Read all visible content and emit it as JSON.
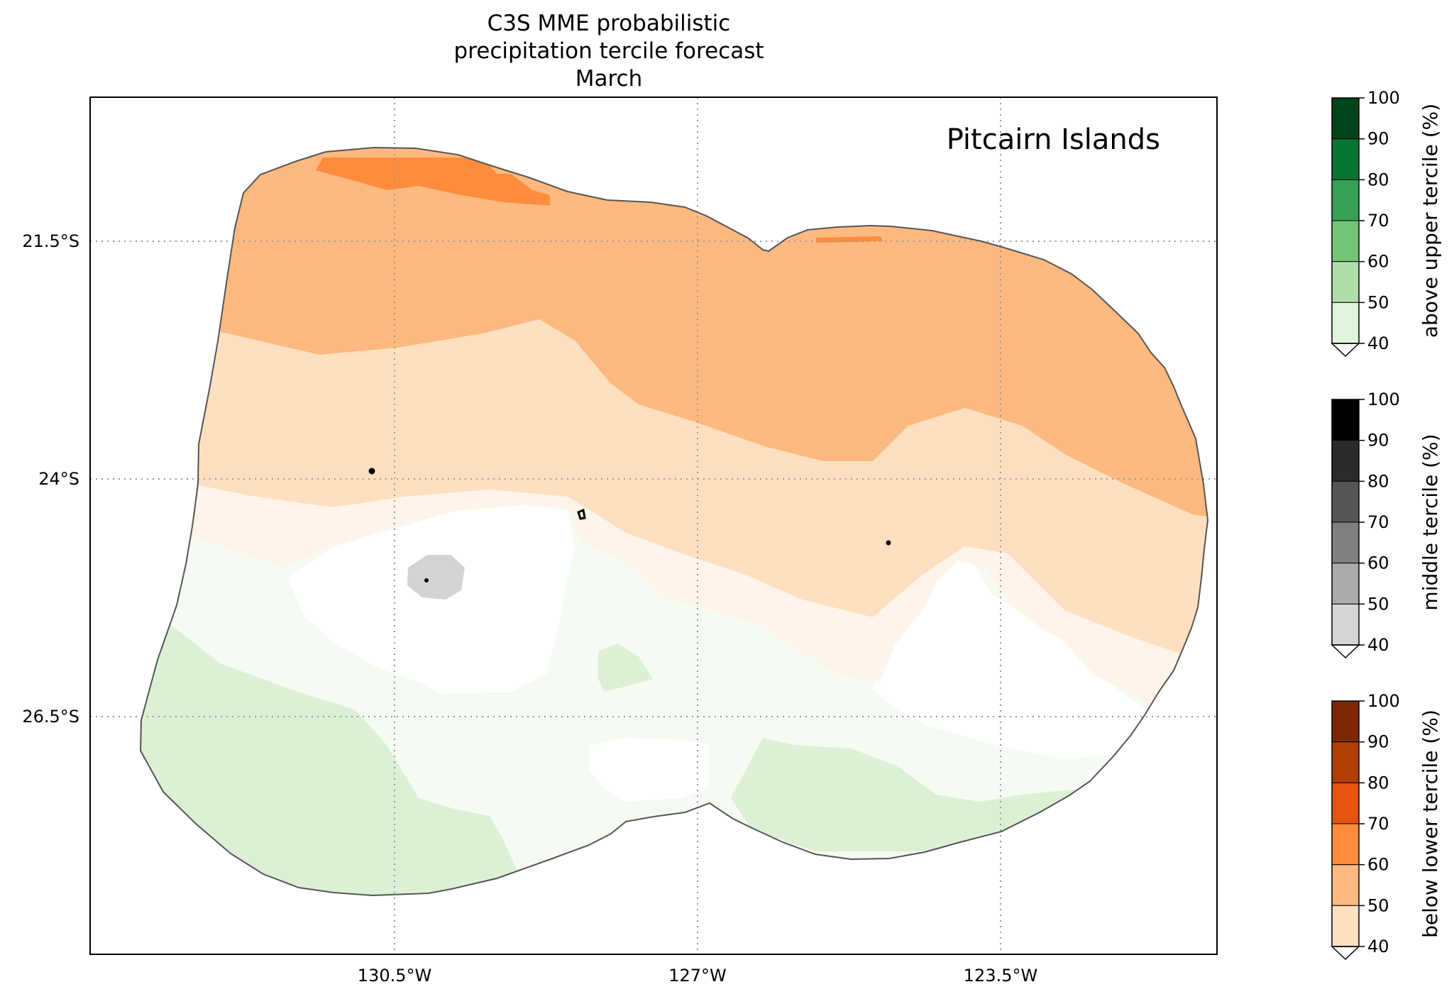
{
  "title": [
    "C3S MME probabilistic",
    "precipitation tercile forecast",
    "March"
  ],
  "region_label": "Pitcairn Islands",
  "map": {
    "lon_ticks": [
      "130.5°W",
      "127°W",
      "123.5°W"
    ],
    "lat_ticks": [
      "21.5°S",
      "24°S",
      "26.5°S"
    ]
  },
  "colorbars": [
    {
      "label": "above upper tercile (%)",
      "ticks": [
        "100",
        "90",
        "80",
        "70",
        "60",
        "50",
        "40"
      ],
      "colors": [
        "#00441b",
        "#0a7433",
        "#37a055",
        "#75c476",
        "#b0dea8",
        "#e0f3db"
      ]
    },
    {
      "label": "middle tercile (%)",
      "ticks": [
        "100",
        "90",
        "80",
        "70",
        "60",
        "50",
        "40"
      ],
      "colors": [
        "#000000",
        "#2b2b2b",
        "#555555",
        "#808080",
        "#ababab",
        "#d5d5d5"
      ]
    },
    {
      "label": "below lower tercile (%)",
      "ticks": [
        "100",
        "90",
        "80",
        "70",
        "60",
        "50",
        "40"
      ],
      "colors": [
        "#7f2704",
        "#b13e03",
        "#e6550d",
        "#fd8d3c",
        "#fdb97f",
        "#fee0c1"
      ]
    }
  ],
  "colors": {
    "below_40_50": "#fee0c1",
    "below_50_60": "#fdb97f",
    "below_60_70": "#fd8d3c",
    "below_light": "#fff4ea",
    "above_light": "#f5fbf2",
    "above_40_50": "#dcf0d6",
    "middle_40_50": "#d3d3d3",
    "eez_outline": "#555555"
  }
}
